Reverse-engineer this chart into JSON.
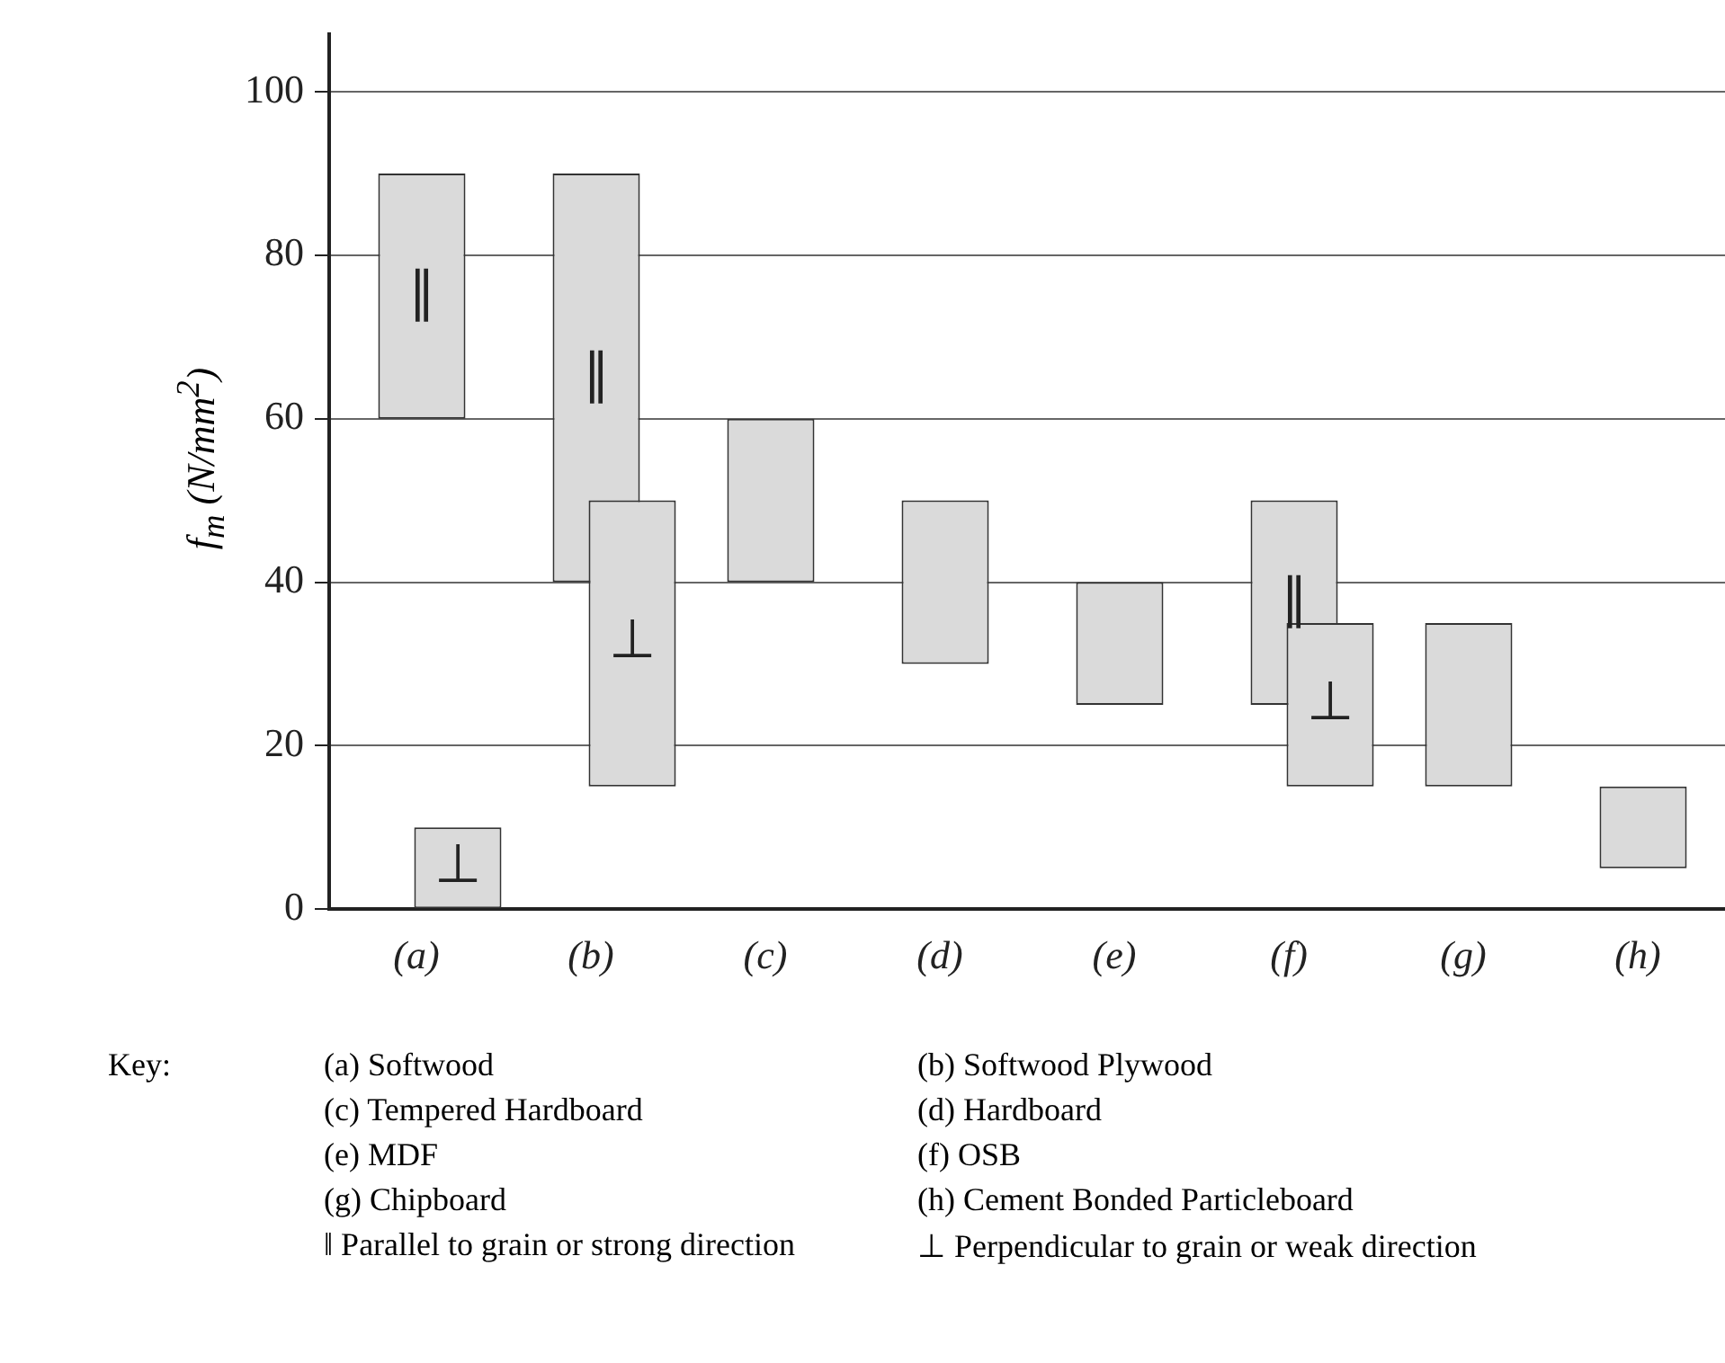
{
  "chart_data": {
    "type": "bar",
    "ylabel": "f$_{m}$ (N/mm$^{2}$)",
    "categories": [
      "(a)",
      "(b)",
      "(c)",
      "(d)",
      "(e)",
      "(f)",
      "(g)",
      "(h)"
    ],
    "series": [
      {
        "color": "#dadada",
        "base": [
          60,
          40,
          40,
          30,
          25,
          25,
          15,
          5
        ],
        "values": [
          30,
          50,
          20,
          20,
          15,
          25,
          20,
          10
        ],
        "value_labels": [
          "∥",
          "∥",
          null,
          null,
          null,
          "∥",
          null,
          null
        ]
      },
      {
        "color": "#dadada",
        "base": [
          0,
          15,
          null,
          null,
          null,
          15,
          null,
          null
        ],
        "values": [
          10,
          35,
          null,
          null,
          null,
          20,
          null,
          null
        ],
        "value_labels": [
          "⊥",
          "⊥",
          null,
          null,
          null,
          "⊥",
          null,
          null
        ]
      }
    ],
    "ylim": [
      0,
      107
    ],
    "yticks": [
      0,
      20,
      40,
      60,
      80,
      100
    ],
    "grid": "y",
    "legend": false,
    "annotations": [
      "Key:",
      "(a)  Softwood",
      "(b)  Softwood Plywood",
      "(c)  Tempered Hardboard",
      "(d)  Hardboard",
      "(e)  MDF",
      "(f)  OSB",
      "(g)  Chipboard",
      "(h)  Cement Bonded Particleboard",
      "‖  Parallel to grain or strong direction",
      "⊥  Perpendicular to grain or weak direction"
    ]
  }
}
